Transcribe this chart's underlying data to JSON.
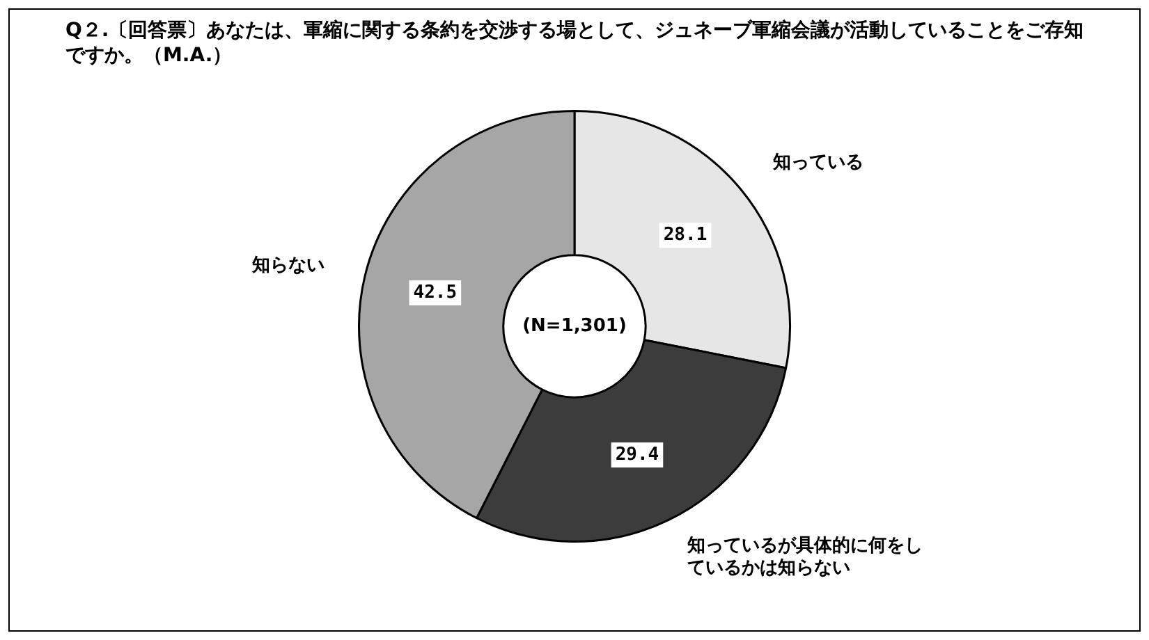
{
  "chart_data": {
    "type": "donut",
    "title": "Q２.〔回答票〕あなたは、軍縮に関する条約を交渉する場として、ジュネーブ軍縮会議が活動していることをご存知ですか。（M.A.）",
    "categories": [
      "知っている",
      "知っているが具体的に何をしているかは知らない",
      "知らない"
    ],
    "values": [
      28.1,
      29.4,
      42.5
    ],
    "colors": [
      "#e6e6e6",
      "#3c3c3c",
      "#a6a6a6"
    ],
    "data_labels": true,
    "annotations": [
      "(N=1,301)"
    ],
    "legend": false
  }
}
